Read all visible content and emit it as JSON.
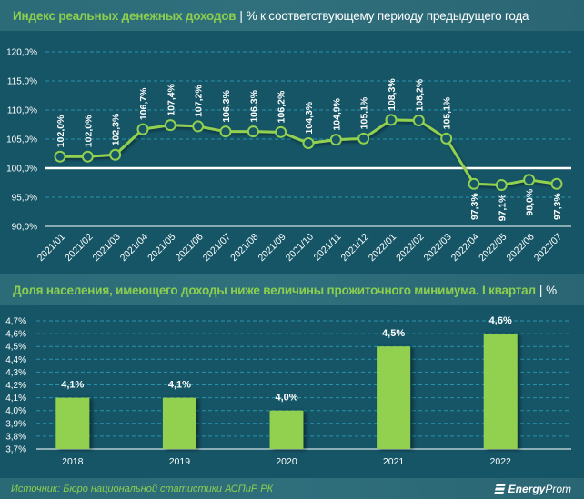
{
  "header1": {
    "title": "Индекс реальных денежных доходов",
    "separator": "|",
    "subtitle": "% к соответствующему периоду предыдущего года"
  },
  "header2": {
    "title": "Доля населения, имеющего доходы ниже величины прожиточного минимума. I квартал",
    "separator": "|",
    "subtitle": "%"
  },
  "footer": {
    "source": "Источник: Бюро национальной статистики АСПиР РК",
    "logo_bold": "Energy",
    "logo_rest": "Prom",
    "logo_icon": "energyprom-logo-icon"
  },
  "colors": {
    "background": "#155566",
    "accent_green": "#8ccf4f",
    "bar_green": "#92d050",
    "gridline": "#2fa3bf",
    "baseline": "#ffffff"
  },
  "chart_data": [
    {
      "type": "line",
      "title": "Индекс реальных денежных доходов | % к соответствующему периоду предыдущего года",
      "xlabel": "",
      "ylabel": "",
      "ylim": [
        90,
        120
      ],
      "yticks": [
        "90,0%",
        "95,0%",
        "100,0%",
        "105,0%",
        "110,0%",
        "115,0%",
        "120,0%"
      ],
      "ytick_values": [
        90,
        95,
        100,
        105,
        110,
        115,
        120
      ],
      "reference_line": 100,
      "grid": true,
      "categories": [
        "2021/01",
        "2021/02",
        "2021/03",
        "2021/04",
        "2021/05",
        "2021/06",
        "2021/07",
        "2021/08",
        "2021/09",
        "2021/10",
        "2021/11",
        "2021/12",
        "2022/01",
        "2022/02",
        "2022/03",
        "2022/04",
        "2022/05",
        "2022/06",
        "2022/07"
      ],
      "values": [
        102.0,
        102.0,
        102.3,
        106.7,
        107.4,
        107.2,
        106.3,
        106.3,
        106.2,
        104.3,
        104.9,
        105.1,
        108.3,
        108.2,
        105.1,
        97.3,
        97.1,
        98.0,
        97.3
      ],
      "labels": [
        "102,0%",
        "102,0%",
        "102,3%",
        "106,7%",
        "107,4%",
        "107,2%",
        "106,3%",
        "106,3%",
        "106,2%",
        "104,3%",
        "104,9%",
        "105,1%",
        "108,3%",
        "108,2%",
        "105,1%",
        "97,3%",
        "97,1%",
        "98,0%",
        "97,3%"
      ]
    },
    {
      "type": "bar",
      "title": "Доля населения, имеющего доходы ниже величины прожиточного минимума. I квартал | %",
      "xlabel": "",
      "ylabel": "",
      "ylim": [
        3.7,
        4.7
      ],
      "yticks": [
        "3,7%",
        "3,8%",
        "3,9%",
        "4,0%",
        "4,1%",
        "4,2%",
        "4,3%",
        "4,4%",
        "4,5%",
        "4,6%",
        "4,7%"
      ],
      "ytick_values": [
        3.7,
        3.8,
        3.9,
        4.0,
        4.1,
        4.2,
        4.3,
        4.4,
        4.5,
        4.6,
        4.7
      ],
      "grid": true,
      "categories": [
        "2018",
        "2019",
        "2020",
        "2021",
        "2022"
      ],
      "values": [
        4.1,
        4.1,
        4.0,
        4.5,
        4.6
      ],
      "labels": [
        "4,1%",
        "4,1%",
        "4,0%",
        "4,5%",
        "4,6%"
      ]
    }
  ]
}
